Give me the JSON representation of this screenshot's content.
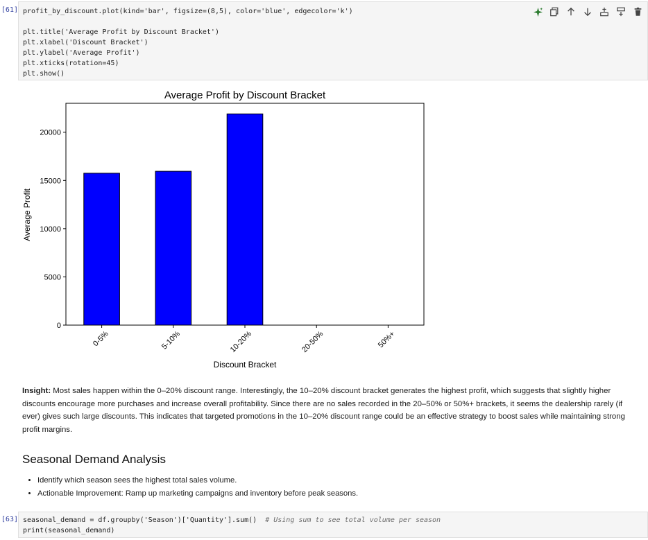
{
  "cells": {
    "plot_cell": {
      "prompt": "[61]:",
      "code": [
        "profit_by_discount.plot(kind='bar', figsize=(8,5), color='blue', edgecolor='k')",
        "",
        "plt.title('Average Profit by Discount Bracket')",
        "plt.xlabel('Discount Bracket')",
        "plt.ylabel('Average Profit')",
        "plt.xticks(rotation=45)",
        "plt.show()"
      ]
    },
    "demand_cell": {
      "prompt": "[63]:",
      "code_main": "seasonal_demand = df.groupby('Season')['Quantity'].sum()  ",
      "code_comment": "# Using sum to see total volume per season",
      "code_line2": "print(seasonal_demand)"
    }
  },
  "toolbar": {
    "icons": [
      "sparkle-icon",
      "copy-icon",
      "move-up-icon",
      "move-down-icon",
      "insert-above-icon",
      "insert-below-icon",
      "delete-icon"
    ],
    "accent": "#2e7d32"
  },
  "chart_data": {
    "type": "bar",
    "title": "Average Profit by Discount Bracket",
    "xlabel": "Discount Bracket",
    "ylabel": "Average Profit",
    "categories": [
      "0-5%",
      "5-10%",
      "10-20%",
      "20-50%",
      "50%+"
    ],
    "values": [
      15750,
      15950,
      21900,
      0,
      0
    ],
    "yticks": [
      "0",
      "5000",
      "10000",
      "15000",
      "20000"
    ],
    "ylim": [
      0,
      23000
    ],
    "bar_color": "#0000ff",
    "edge_color": "#000000",
    "grid": false,
    "xtick_rotation": 45
  },
  "insight": {
    "label": "Insight:",
    "text": " Most sales happen within the 0–20% discount range. Interestingly, the 10–20% discount bracket generates the highest profit, which suggests that slightly higher discounts encourage more purchases and increase overall profitability. Since there are no sales recorded in the 20–50% or 50%+ brackets, it seems the dealership rarely (if ever) gives such large discounts. This indicates that targeted promotions in the 10–20% discount range could be an effective strategy to boost sales while maintaining strong profit margins."
  },
  "section": {
    "heading": "Seasonal Demand Analysis",
    "bullets": [
      "Identify which season sees the highest total sales volume.",
      "Actionable Improvement: Ramp up marketing campaigns and inventory before peak seasons."
    ]
  }
}
